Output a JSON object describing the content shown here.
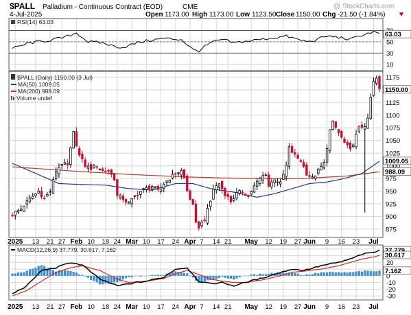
{
  "header": {
    "symbol": "$PALL",
    "name": "Palladium - Continuous Contract (EOD)",
    "exchange": "CME",
    "watermark": "@ StockCharts.com",
    "date": "4-Jul-2025",
    "open_label": "Open",
    "open": "1173.00",
    "high_label": "High",
    "high": "1173.00",
    "low_label": "Low",
    "low": "1123.50",
    "close_label": "Close",
    "close": "1150.00",
    "chg_label": "Chg",
    "chg": "-21.50 (-1.84%)",
    "chg_arrow": "▼",
    "chg_color": "#cc0000"
  },
  "colors": {
    "up": "#ffffff",
    "down": "#c8102e",
    "ma50": "#1f3a93",
    "ma200": "#c0392b",
    "macd": "#000000",
    "signal": "#e0281e",
    "hist": "#3b8fd0",
    "rsi": "#000000"
  },
  "rsi_panel": {
    "legend": "RSI(14) 63.03",
    "value_label": "63.03",
    "y_ticks": [
      "70",
      "50",
      "30",
      "10"
    ],
    "ylim": [
      0,
      90
    ]
  },
  "price_panel": {
    "legend_title": "$PALL (Daily) 1150.00 (3 Jul)",
    "ma50_legend": "MA(50) 1009.05",
    "ma200_legend": "MA(200) 988.09",
    "volume_legend": "Volume undef",
    "last_label": "1150.00",
    "ma50_label": "1009.05",
    "ma200_label": "988.09",
    "y_ticks": [
      "1175",
      "1150",
      "1125",
      "1100",
      "1075",
      "1050",
      "1025",
      "1000",
      "975",
      "950",
      "925",
      "900",
      "875"
    ]
  },
  "macd_panel": {
    "legend": "MACD(12,26,9) 37.779, 30.617, 7.162",
    "macd_label": "37.779",
    "signal_label": "30.617",
    "hist_label": "7.162",
    "y_ticks": [
      "40",
      "30",
      "20",
      "10",
      "0",
      "-10",
      "-20",
      "-30"
    ]
  },
  "x_axis": {
    "labels": [
      {
        "text": "2025",
        "bold": true,
        "d": 1
      },
      {
        "text": "13",
        "bold": false,
        "d": 8
      },
      {
        "text": "21",
        "bold": false,
        "d": 13
      },
      {
        "text": "27",
        "bold": false,
        "d": 17
      },
      {
        "text": "Feb",
        "bold": true,
        "d": 22
      },
      {
        "text": "10",
        "bold": false,
        "d": 27
      },
      {
        "text": "18",
        "bold": false,
        "d": 32
      },
      {
        "text": "24",
        "bold": false,
        "d": 36
      },
      {
        "text": "Mar",
        "bold": true,
        "d": 41
      },
      {
        "text": "10",
        "bold": false,
        "d": 46
      },
      {
        "text": "17",
        "bold": false,
        "d": 51
      },
      {
        "text": "24",
        "bold": false,
        "d": 56
      },
      {
        "text": "Apr",
        "bold": true,
        "d": 61
      },
      {
        "text": "7",
        "bold": false,
        "d": 65
      },
      {
        "text": "14",
        "bold": false,
        "d": 70
      },
      {
        "text": "21",
        "bold": false,
        "d": 74
      },
      {
        "text": "May",
        "bold": true,
        "d": 82
      },
      {
        "text": "12",
        "bold": false,
        "d": 88
      },
      {
        "text": "19",
        "bold": false,
        "d": 93
      },
      {
        "text": "27",
        "bold": false,
        "d": 98
      },
      {
        "text": "Jun",
        "bold": true,
        "d": 102
      },
      {
        "text": "9",
        "bold": false,
        "d": 108
      },
      {
        "text": "16",
        "bold": false,
        "d": 113
      },
      {
        "text": "23",
        "bold": false,
        "d": 118
      },
      {
        "text": "Jul",
        "bold": true,
        "d": 124
      }
    ]
  },
  "chart_data": {
    "type": "candlestick",
    "title": "Palladium - Continuous Contract (EOD)",
    "x_start": "2025-01-02",
    "x_end": "2025-07-03",
    "sessions": 127,
    "price_ylim": [
      860,
      1185
    ],
    "close_anchors": [
      [
        0,
        905
      ],
      [
        3,
        915
      ],
      [
        6,
        935
      ],
      [
        9,
        950
      ],
      [
        11,
        935
      ],
      [
        13,
        950
      ],
      [
        15,
        990
      ],
      [
        17,
        1005
      ],
      [
        19,
        1000
      ],
      [
        21,
        1065
      ],
      [
        23,
        1020
      ],
      [
        25,
        1000
      ],
      [
        27,
        995
      ],
      [
        29,
        1000
      ],
      [
        31,
        990
      ],
      [
        33,
        990
      ],
      [
        35,
        975
      ],
      [
        36,
        940
      ],
      [
        38,
        935
      ],
      [
        40,
        925
      ],
      [
        42,
        940
      ],
      [
        44,
        950
      ],
      [
        46,
        955
      ],
      [
        48,
        960
      ],
      [
        50,
        950
      ],
      [
        52,
        965
      ],
      [
        54,
        975
      ],
      [
        56,
        985
      ],
      [
        58,
        990
      ],
      [
        59,
        975
      ],
      [
        60,
        950
      ],
      [
        62,
        920
      ],
      [
        63,
        885
      ],
      [
        64,
        880
      ],
      [
        66,
        895
      ],
      [
        68,
        930
      ],
      [
        69,
        955
      ],
      [
        71,
        965
      ],
      [
        73,
        945
      ],
      [
        75,
        930
      ],
      [
        77,
        945
      ],
      [
        79,
        950
      ],
      [
        81,
        940
      ],
      [
        83,
        960
      ],
      [
        85,
        975
      ],
      [
        87,
        985
      ],
      [
        88,
        960
      ],
      [
        90,
        975
      ],
      [
        92,
        965
      ],
      [
        94,
        1000
      ],
      [
        95,
        1035
      ],
      [
        97,
        1020
      ],
      [
        99,
        1010
      ],
      [
        101,
        985
      ],
      [
        103,
        975
      ],
      [
        105,
        990
      ],
      [
        107,
        1005
      ],
      [
        109,
        1070
      ],
      [
        110,
        1085
      ],
      [
        112,
        1065
      ],
      [
        114,
        1045
      ],
      [
        116,
        1030
      ],
      [
        118,
        1060
      ],
      [
        119,
        1075
      ],
      [
        121,
        1080
      ],
      [
        122,
        1090
      ],
      [
        123,
        1135
      ],
      [
        124,
        1165
      ],
      [
        125,
        1172
      ],
      [
        126,
        1150
      ]
    ],
    "rsi_anchors": [
      [
        0,
        38
      ],
      [
        6,
        48
      ],
      [
        12,
        52
      ],
      [
        18,
        58
      ],
      [
        22,
        66
      ],
      [
        26,
        50
      ],
      [
        31,
        48
      ],
      [
        35,
        42
      ],
      [
        38,
        40
      ],
      [
        44,
        50
      ],
      [
        52,
        56
      ],
      [
        58,
        54
      ],
      [
        62,
        36
      ],
      [
        64,
        34
      ],
      [
        68,
        48
      ],
      [
        72,
        54
      ],
      [
        76,
        48
      ],
      [
        82,
        52
      ],
      [
        88,
        56
      ],
      [
        94,
        60
      ],
      [
        98,
        54
      ],
      [
        102,
        50
      ],
      [
        108,
        60
      ],
      [
        112,
        58
      ],
      [
        116,
        54
      ],
      [
        120,
        62
      ],
      [
        124,
        68
      ],
      [
        126,
        63.03
      ]
    ],
    "macd_anchors": [
      [
        0,
        -27
      ],
      [
        5,
        -15
      ],
      [
        10,
        8
      ],
      [
        15,
        12
      ],
      [
        20,
        20
      ],
      [
        24,
        16
      ],
      [
        30,
        -5
      ],
      [
        36,
        -15
      ],
      [
        40,
        -12
      ],
      [
        46,
        -8
      ],
      [
        52,
        -2
      ],
      [
        56,
        10
      ],
      [
        60,
        12
      ],
      [
        64,
        -8
      ],
      [
        68,
        -12
      ],
      [
        72,
        -10
      ],
      [
        76,
        -15
      ],
      [
        80,
        -10
      ],
      [
        86,
        -3
      ],
      [
        92,
        5
      ],
      [
        96,
        10
      ],
      [
        100,
        8
      ],
      [
        106,
        15
      ],
      [
        112,
        20
      ],
      [
        116,
        25
      ],
      [
        120,
        32
      ],
      [
        124,
        35
      ],
      [
        126,
        37.779
      ]
    ],
    "signal_anchors": [
      [
        0,
        -30
      ],
      [
        5,
        -22
      ],
      [
        10,
        -8
      ],
      [
        15,
        5
      ],
      [
        20,
        12
      ],
      [
        24,
        15
      ],
      [
        30,
        8
      ],
      [
        36,
        -5
      ],
      [
        40,
        -10
      ],
      [
        46,
        -8
      ],
      [
        52,
        -4
      ],
      [
        56,
        3
      ],
      [
        60,
        8
      ],
      [
        64,
        2
      ],
      [
        68,
        -5
      ],
      [
        72,
        -8
      ],
      [
        76,
        -10
      ],
      [
        80,
        -10
      ],
      [
        86,
        -6
      ],
      [
        92,
        0
      ],
      [
        96,
        5
      ],
      [
        100,
        7
      ],
      [
        106,
        10
      ],
      [
        112,
        15
      ],
      [
        116,
        20
      ],
      [
        120,
        25
      ],
      [
        124,
        28
      ],
      [
        126,
        30.617
      ]
    ],
    "ma50_anchors": [
      [
        0,
        1005
      ],
      [
        8,
        985
      ],
      [
        16,
        965
      ],
      [
        24,
        963
      ],
      [
        32,
        962
      ],
      [
        40,
        955
      ],
      [
        48,
        952
      ],
      [
        56,
        965
      ],
      [
        62,
        965
      ],
      [
        68,
        955
      ],
      [
        76,
        948
      ],
      [
        84,
        938
      ],
      [
        90,
        945
      ],
      [
        96,
        955
      ],
      [
        102,
        965
      ],
      [
        108,
        968
      ],
      [
        114,
        975
      ],
      [
        120,
        985
      ],
      [
        126,
        1009.05
      ]
    ],
    "ma200_anchors": [
      [
        0,
        998
      ],
      [
        20,
        990
      ],
      [
        40,
        983
      ],
      [
        60,
        978
      ],
      [
        80,
        975
      ],
      [
        100,
        975
      ],
      [
        115,
        980
      ],
      [
        126,
        988.09
      ]
    ],
    "rsi_ylim": [
      0,
      90
    ],
    "macd_ylim": [
      -35,
      45
    ]
  }
}
